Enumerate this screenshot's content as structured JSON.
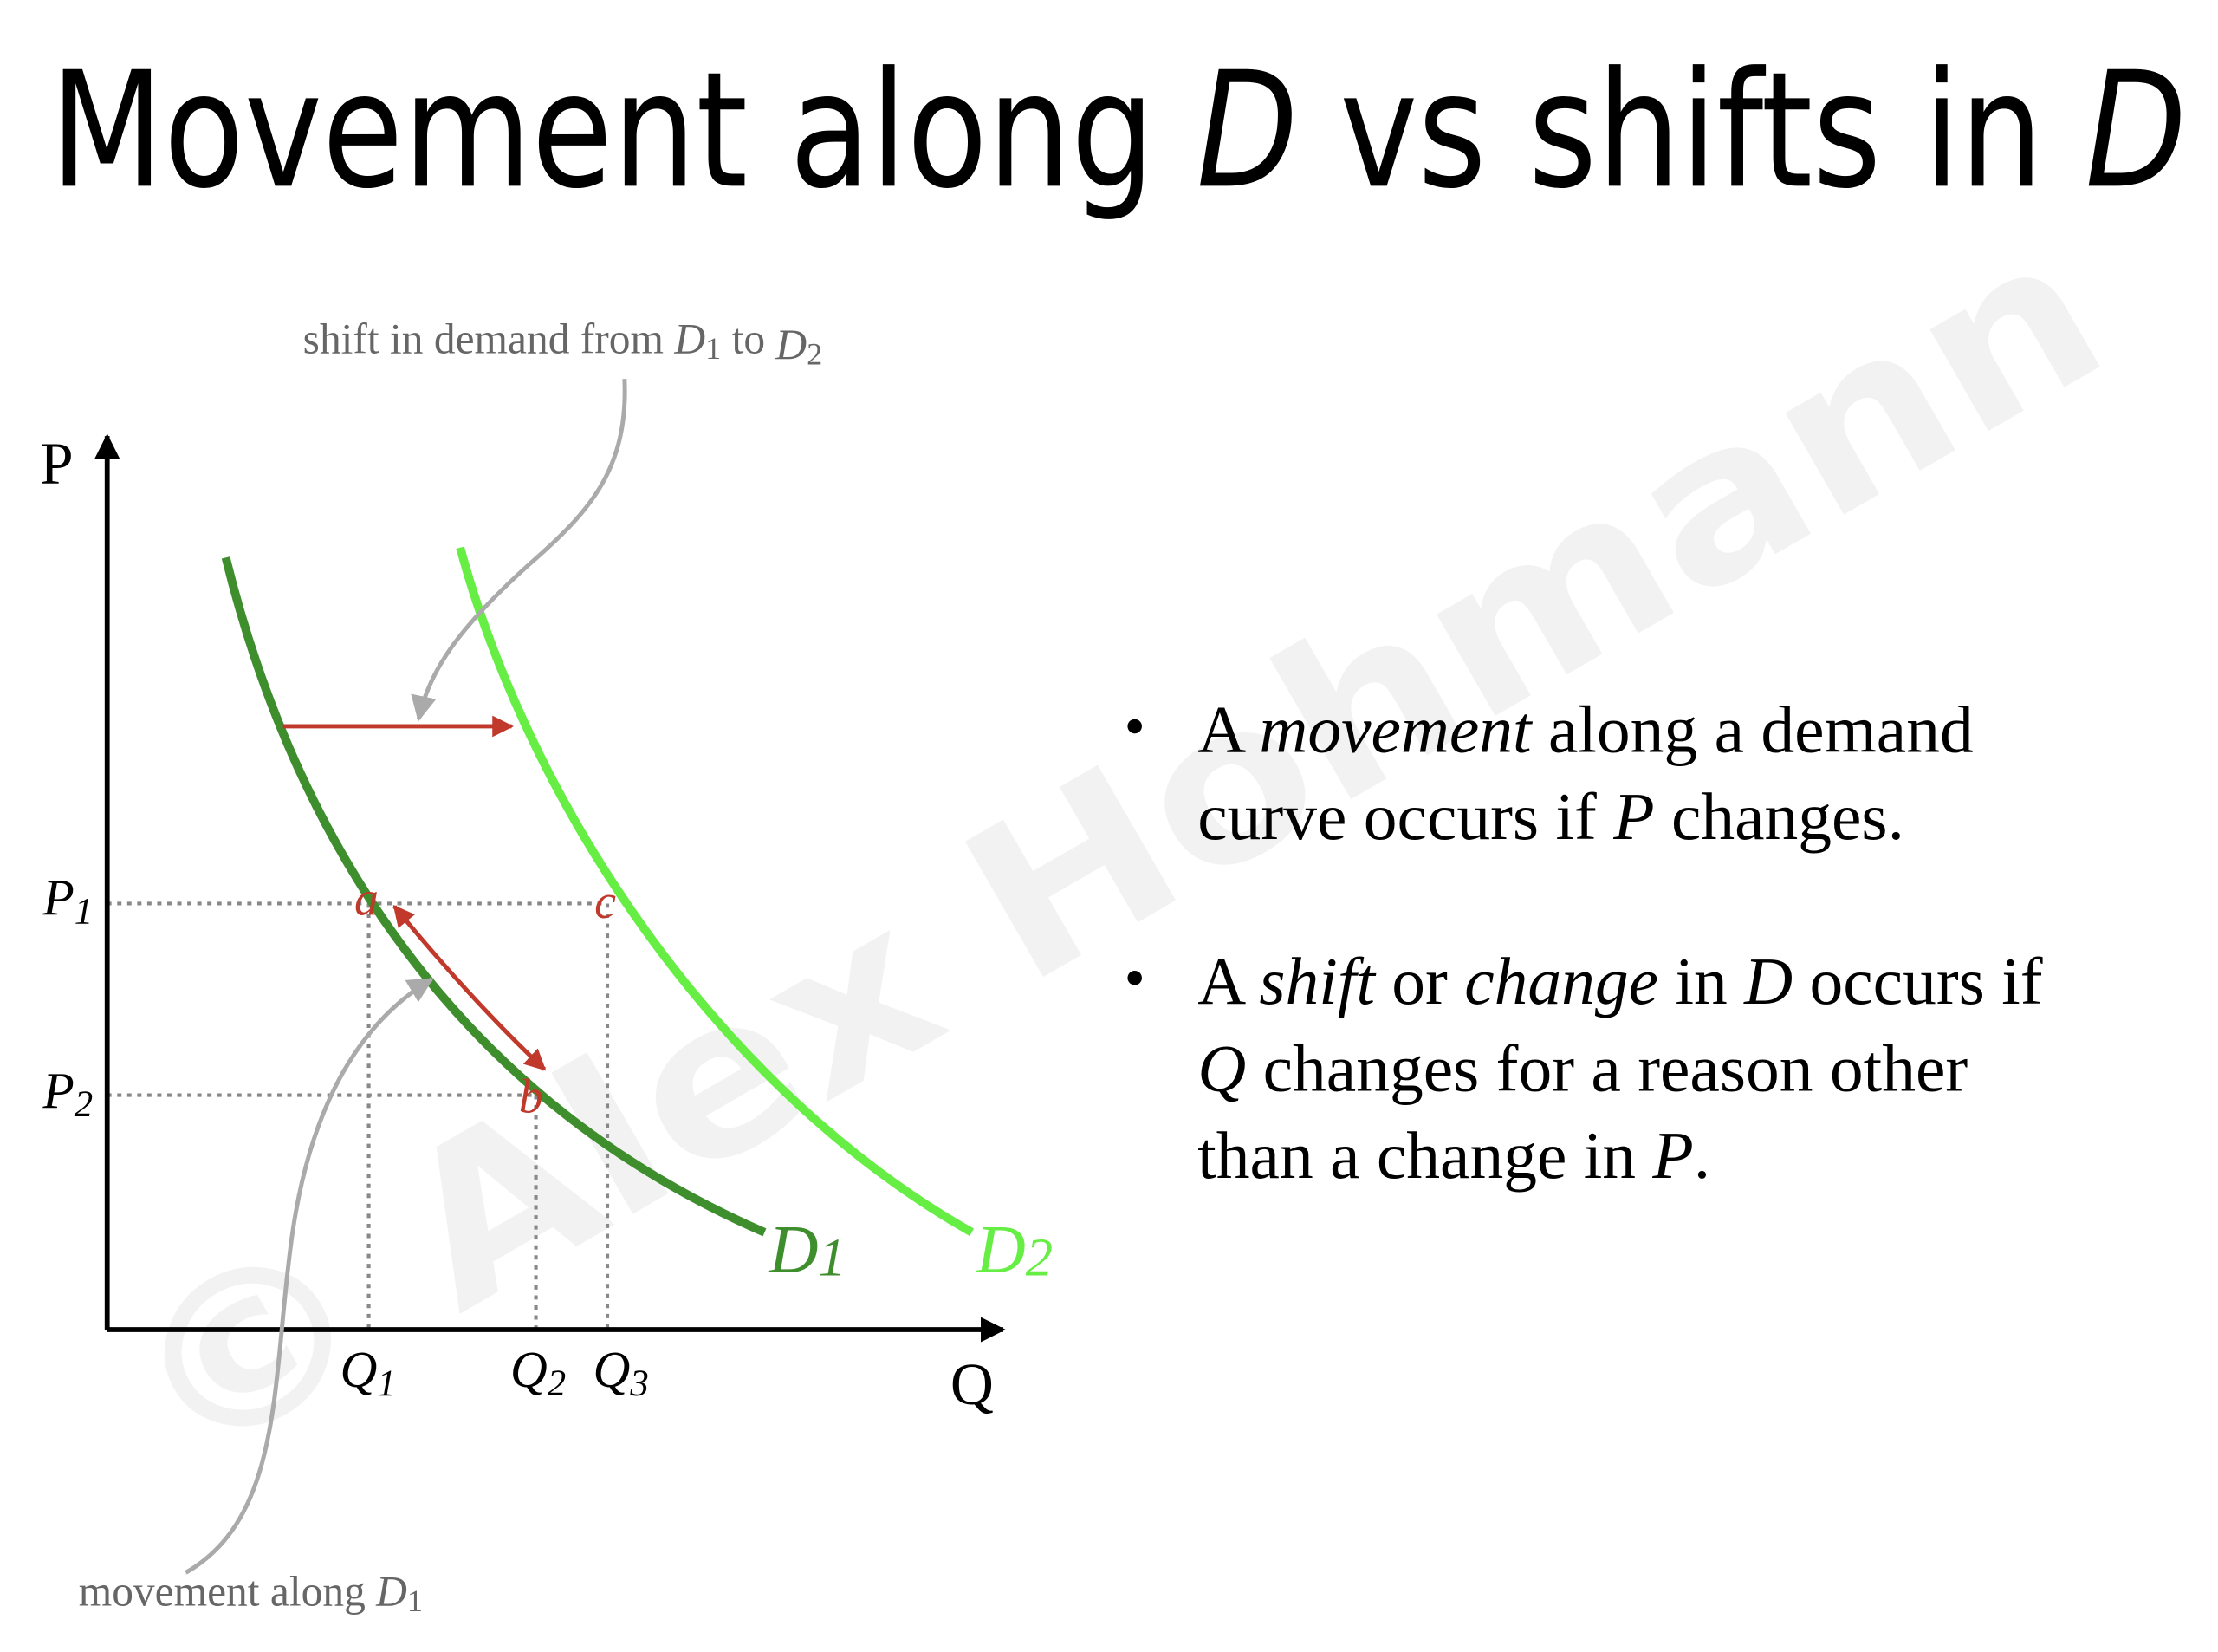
{
  "title": {
    "parts": [
      "Movement along ",
      "D",
      " vs shifts in ",
      "D"
    ]
  },
  "watermark": "© Alex Hohmann",
  "diagram": {
    "y_axis_label": "P",
    "x_axis_label": "Q",
    "price_labels": [
      [
        "P",
        "1"
      ],
      [
        "P",
        "2"
      ]
    ],
    "quantity_labels": [
      [
        "Q",
        "1"
      ],
      [
        "Q",
        "2"
      ],
      [
        "Q",
        "3"
      ]
    ],
    "curve_labels": [
      [
        "D",
        "1"
      ],
      [
        "D",
        "2"
      ]
    ],
    "points": [
      "a",
      "b",
      "c"
    ],
    "annotations": {
      "shift": [
        "shift in demand from ",
        "D",
        "1",
        " to ",
        "D",
        "2"
      ],
      "movement": [
        "movement along ",
        "D",
        "1"
      ]
    }
  },
  "bullets": [
    [
      [
        "A ",
        "movement",
        " along a demand"
      ],
      [
        "curve occurs if ",
        "P",
        " changes."
      ]
    ],
    [
      [
        "A ",
        "shift",
        " or ",
        "change",
        " in ",
        "D",
        " occurs if"
      ],
      [
        "Q",
        " changes for a reason other"
      ],
      [
        "than a change in ",
        "P",
        "."
      ]
    ]
  ]
}
